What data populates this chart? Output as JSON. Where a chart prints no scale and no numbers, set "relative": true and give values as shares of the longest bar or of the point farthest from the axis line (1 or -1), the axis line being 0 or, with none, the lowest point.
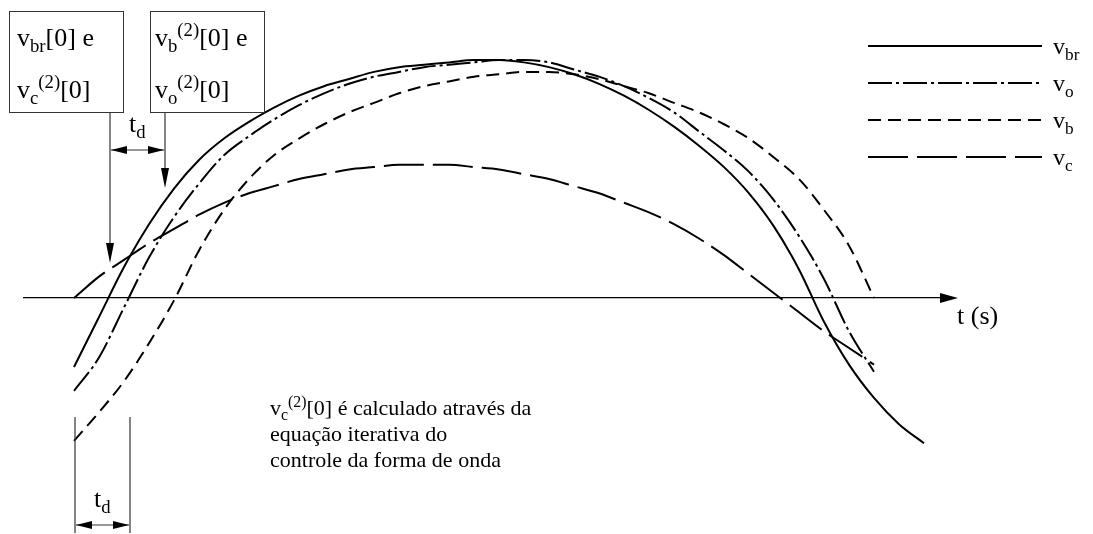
{
  "chart_data": {
    "type": "line",
    "relative": true,
    "xlabel": "t (s)",
    "legend": "top right",
    "categories": [
      null,
      null,
      null,
      null,
      null,
      null,
      null,
      null,
      null,
      null,
      null,
      null,
      null,
      null,
      null,
      null,
      null,
      null,
      null,
      null,
      null,
      null,
      null,
      null,
      null,
      null,
      null,
      null,
      null,
      null,
      null,
      null,
      null,
      null,
      null,
      null,
      null,
      null
    ],
    "series": [
      {
        "name": "v$_{br}$",
        "color": "#000000",
        "line_style": "solid",
        "values": [
          null,
          null,
          -0.29,
          -0.08,
          0.13,
          0.31,
          0.46,
          0.58,
          0.67,
          0.74,
          0.8,
          0.85,
          0.89,
          0.92,
          0.95,
          0.97,
          0.98,
          0.99,
          1.0,
          1.0,
          0.99,
          0.97,
          0.94,
          0.9,
          0.85,
          0.79,
          0.72,
          0.64,
          0.55,
          0.44,
          0.3,
          0.12,
          -0.1,
          -0.28,
          -0.42,
          -0.53,
          -0.61,
          null
        ]
      },
      {
        "name": "v$_{o}$",
        "color": "#000000",
        "line_style": "dashdot",
        "values": [
          null,
          null,
          -0.39,
          -0.25,
          -0.04,
          0.17,
          0.34,
          0.48,
          0.6,
          0.68,
          0.75,
          0.81,
          0.86,
          0.9,
          0.93,
          0.95,
          0.97,
          0.98,
          0.99,
          1.0,
          1.0,
          0.99,
          0.96,
          0.93,
          0.89,
          0.84,
          0.78,
          0.7,
          0.62,
          0.53,
          0.41,
          0.26,
          0.08,
          -0.14,
          -0.31,
          null,
          null,
          null
        ]
      },
      {
        "name": "v$_{b}$",
        "color": "#000000",
        "line_style": "dashed",
        "values": [
          null,
          null,
          -0.6,
          -0.48,
          -0.35,
          -0.19,
          -0.01,
          0.2,
          0.37,
          0.5,
          0.6,
          0.67,
          0.73,
          0.78,
          0.82,
          0.86,
          0.89,
          0.91,
          0.93,
          0.94,
          0.95,
          0.95,
          0.94,
          0.92,
          0.89,
          0.86,
          0.82,
          0.78,
          0.73,
          0.67,
          0.59,
          0.5,
          0.37,
          0.22,
          0,
          null,
          null,
          null
        ]
      },
      {
        "name": "v$_{c}$",
        "color": "#000000",
        "line_style": "longdash",
        "values": [
          null,
          null,
          0,
          0.09,
          0.16,
          0.23,
          0.29,
          0.35,
          0.4,
          0.44,
          0.47,
          0.5,
          0.52,
          0.54,
          0.55,
          0.56,
          0.56,
          0.56,
          0.55,
          0.54,
          0.52,
          0.5,
          0.47,
          0.44,
          0.4,
          0.36,
          0.31,
          0.25,
          0.18,
          0.1,
          0.02,
          -0.06,
          -0.14,
          -0.21,
          -0.28,
          null,
          null,
          null
        ]
      }
    ],
    "annotations": [
      "v$_{br}$[0] e\nv$_{c}$$^{(2)}$[0]",
      "v$_{b}$$^{(2)}$[0] e\nv$_{o}$$^{(2)}$[0]",
      "t$_{d}$",
      "t$_{d}$",
      "v$_{c}$$^{(2)}$[0] é calculado através da\nequação iterativa do\ncontrole da forma de onda"
    ]
  }
}
